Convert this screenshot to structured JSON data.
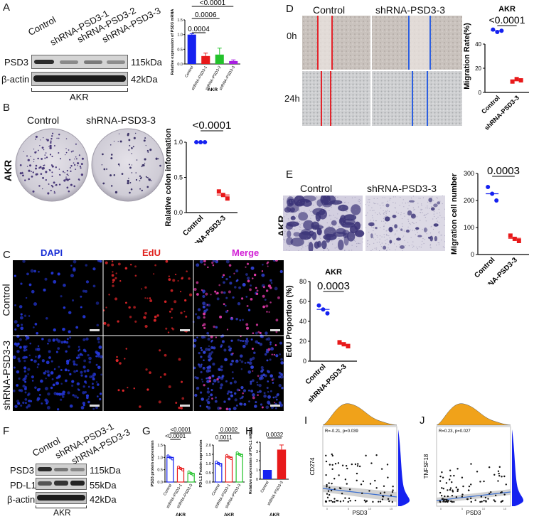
{
  "panel_letters": [
    "A",
    "B",
    "C",
    "D",
    "E",
    "F",
    "G",
    "H",
    "I",
    "J"
  ],
  "panelA": {
    "lanes": [
      "Control",
      "shRNA-PSD3-1",
      "shRNA-PSD3-2",
      "shRNA-PSD3-3"
    ],
    "rows": [
      "PSD3",
      "β-actin"
    ],
    "sizes": [
      "115kDa",
      "42kDa"
    ],
    "cell": "AKR"
  },
  "panelB": {
    "left": "Control",
    "right": "shRNA-PSD3-3",
    "row": "AKR"
  },
  "panelC": {
    "channels": [
      "DAPI",
      "EdU",
      "Merge"
    ],
    "rows": [
      "Control",
      "shRNA-PSD3-3"
    ],
    "channel_colors": [
      "#1a2fd6",
      "#e0201c",
      "#d21fd6"
    ]
  },
  "panelD": {
    "cols": [
      "Control",
      "shRNA-PSD3-3"
    ],
    "rows": [
      "0h",
      "24h"
    ]
  },
  "panelE": {
    "cols": [
      "Control",
      "shRNA-PSD3-3"
    ],
    "row": "AKR"
  },
  "panelF": {
    "lanes": [
      "Control",
      "shRNA-PSD3-1",
      "shRNA-PSD3-3"
    ],
    "rows": [
      "PSD3",
      "PD-L1",
      "β-actin"
    ],
    "sizes": [
      "115kDa",
      "55kDa",
      "42kDa"
    ],
    "cell": "AKR"
  },
  "colors": {
    "blue": "#1521f0",
    "red": "#e8191a",
    "green": "#23c22b",
    "purple": "#a81fe0",
    "orange": "#f0a21a",
    "ci": "#c7c7c7"
  },
  "chart_data": [
    {
      "id": "A-bar",
      "type": "bar",
      "ylabel": "Relative expression of PSD3 mRNA",
      "xlabel": "AKR",
      "categories": [
        "Control",
        "shRNA-PSD3-1",
        "shRNA-PSD3-2",
        "shRNA-PSD3-3"
      ],
      "values": [
        1.0,
        0.27,
        0.32,
        0.1
      ],
      "errors": [
        0.03,
        0.1,
        0.22,
        0.04
      ],
      "ylim": [
        0,
        1.5
      ],
      "yticks": [
        "0.0",
        "0.5",
        "1.0",
        "1.5"
      ],
      "pvalues": [
        "0.0004",
        "0.0006",
        "<0.0001"
      ]
    },
    {
      "id": "B-dot",
      "type": "scatter",
      "ylabel": "Ralative colon information",
      "categories": [
        "Control",
        "shRNA-PSD3-3"
      ],
      "points": [
        [
          1.0,
          1.0,
          1.0
        ],
        [
          0.3,
          0.25,
          0.2
        ]
      ],
      "means": [
        1.0,
        0.25
      ],
      "ylim": [
        0,
        1.0
      ],
      "yticks": [
        "0.0",
        "0.5",
        "1.0"
      ],
      "pvalue": "<0.0001"
    },
    {
      "id": "C-dot",
      "type": "scatter",
      "title": "AKR",
      "ylabel": "EdU Proportion  (%)",
      "categories": [
        "Control",
        "shRNA-PSD3-3"
      ],
      "points": [
        [
          56,
          52,
          48
        ],
        [
          19,
          17,
          15
        ]
      ],
      "means": [
        52,
        17
      ],
      "ylim": [
        0,
        80
      ],
      "yticks": [
        "0",
        "20",
        "40",
        "60",
        "80"
      ],
      "pvalue": "0.0003"
    },
    {
      "id": "D-dot",
      "type": "scatter",
      "title": "AKR",
      "ylabel": "Migration Rate(%)",
      "categories": [
        "Control",
        "shRNA-PSD3-3"
      ],
      "points": [
        [
          52,
          50,
          51
        ],
        [
          9,
          11,
          10
        ]
      ],
      "means": [
        51,
        10
      ],
      "ylim": [
        0,
        60
      ],
      "yticks": [
        "0",
        "20",
        "40"
      ],
      "pvalue": "<0.0001"
    },
    {
      "id": "E-dot",
      "type": "scatter",
      "ylabel": "Migration cell number",
      "categories": [
        "Control",
        "shRNA-PSD3-3"
      ],
      "points": [
        [
          250,
          225,
          200
        ],
        [
          70,
          58,
          50
        ]
      ],
      "means": [
        225,
        60
      ],
      "ylim": [
        0,
        300
      ],
      "yticks": [
        "0",
        "100",
        "200",
        "300"
      ],
      "pvalue": "0.0003"
    },
    {
      "id": "G1-bar",
      "type": "bar",
      "ylabel": "PSD3 protein expression",
      "xlabel": "AKR",
      "categories": [
        "Control",
        "shRNA-PSD3-1",
        "shRNA-PSD3-3"
      ],
      "values": [
        1.0,
        0.55,
        0.35
      ],
      "ylim": [
        0,
        1.5
      ],
      "yticks": [
        "0.0",
        "0.5",
        "1.0",
        "1.5"
      ],
      "pvalues": [
        "<0.0001",
        "<0.0001"
      ]
    },
    {
      "id": "G2-bar",
      "type": "bar",
      "ylabel": "PD-L1 Protein expression",
      "xlabel": "AKR",
      "categories": [
        "Control",
        "shRNA-PSD3-1",
        "shRNA-PSD3-3"
      ],
      "values": [
        1.0,
        1.35,
        1.5
      ],
      "ylim": [
        0,
        2.0
      ],
      "yticks": [
        "0.0",
        "0.5",
        "1.0",
        "1.5",
        "2.0"
      ],
      "pvalues": [
        "0.0011",
        "0.0002"
      ]
    },
    {
      "id": "H-bar",
      "type": "bar",
      "ylabel": "Relative expression of PD-L1 mRNA",
      "xlabel": "AKR",
      "categories": [
        "Control",
        "shRNA-PSD3-3"
      ],
      "values": [
        1.0,
        3.2
      ],
      "errors": [
        0,
        0.5
      ],
      "ylim": [
        0,
        4
      ],
      "yticks": [
        "0",
        "1",
        "2",
        "3",
        "4"
      ],
      "pvalues": [
        "0.0032"
      ]
    },
    {
      "id": "I-scatter",
      "type": "scatter",
      "xlabel": "PSD3",
      "ylabel": "CD274",
      "annotation": "R=-0.21, p=0.039"
    },
    {
      "id": "J-scatter",
      "type": "scatter",
      "xlabel": "PSD3",
      "ylabel": "TNFSF18",
      "annotation": "R=0.23, p=0.027"
    }
  ]
}
